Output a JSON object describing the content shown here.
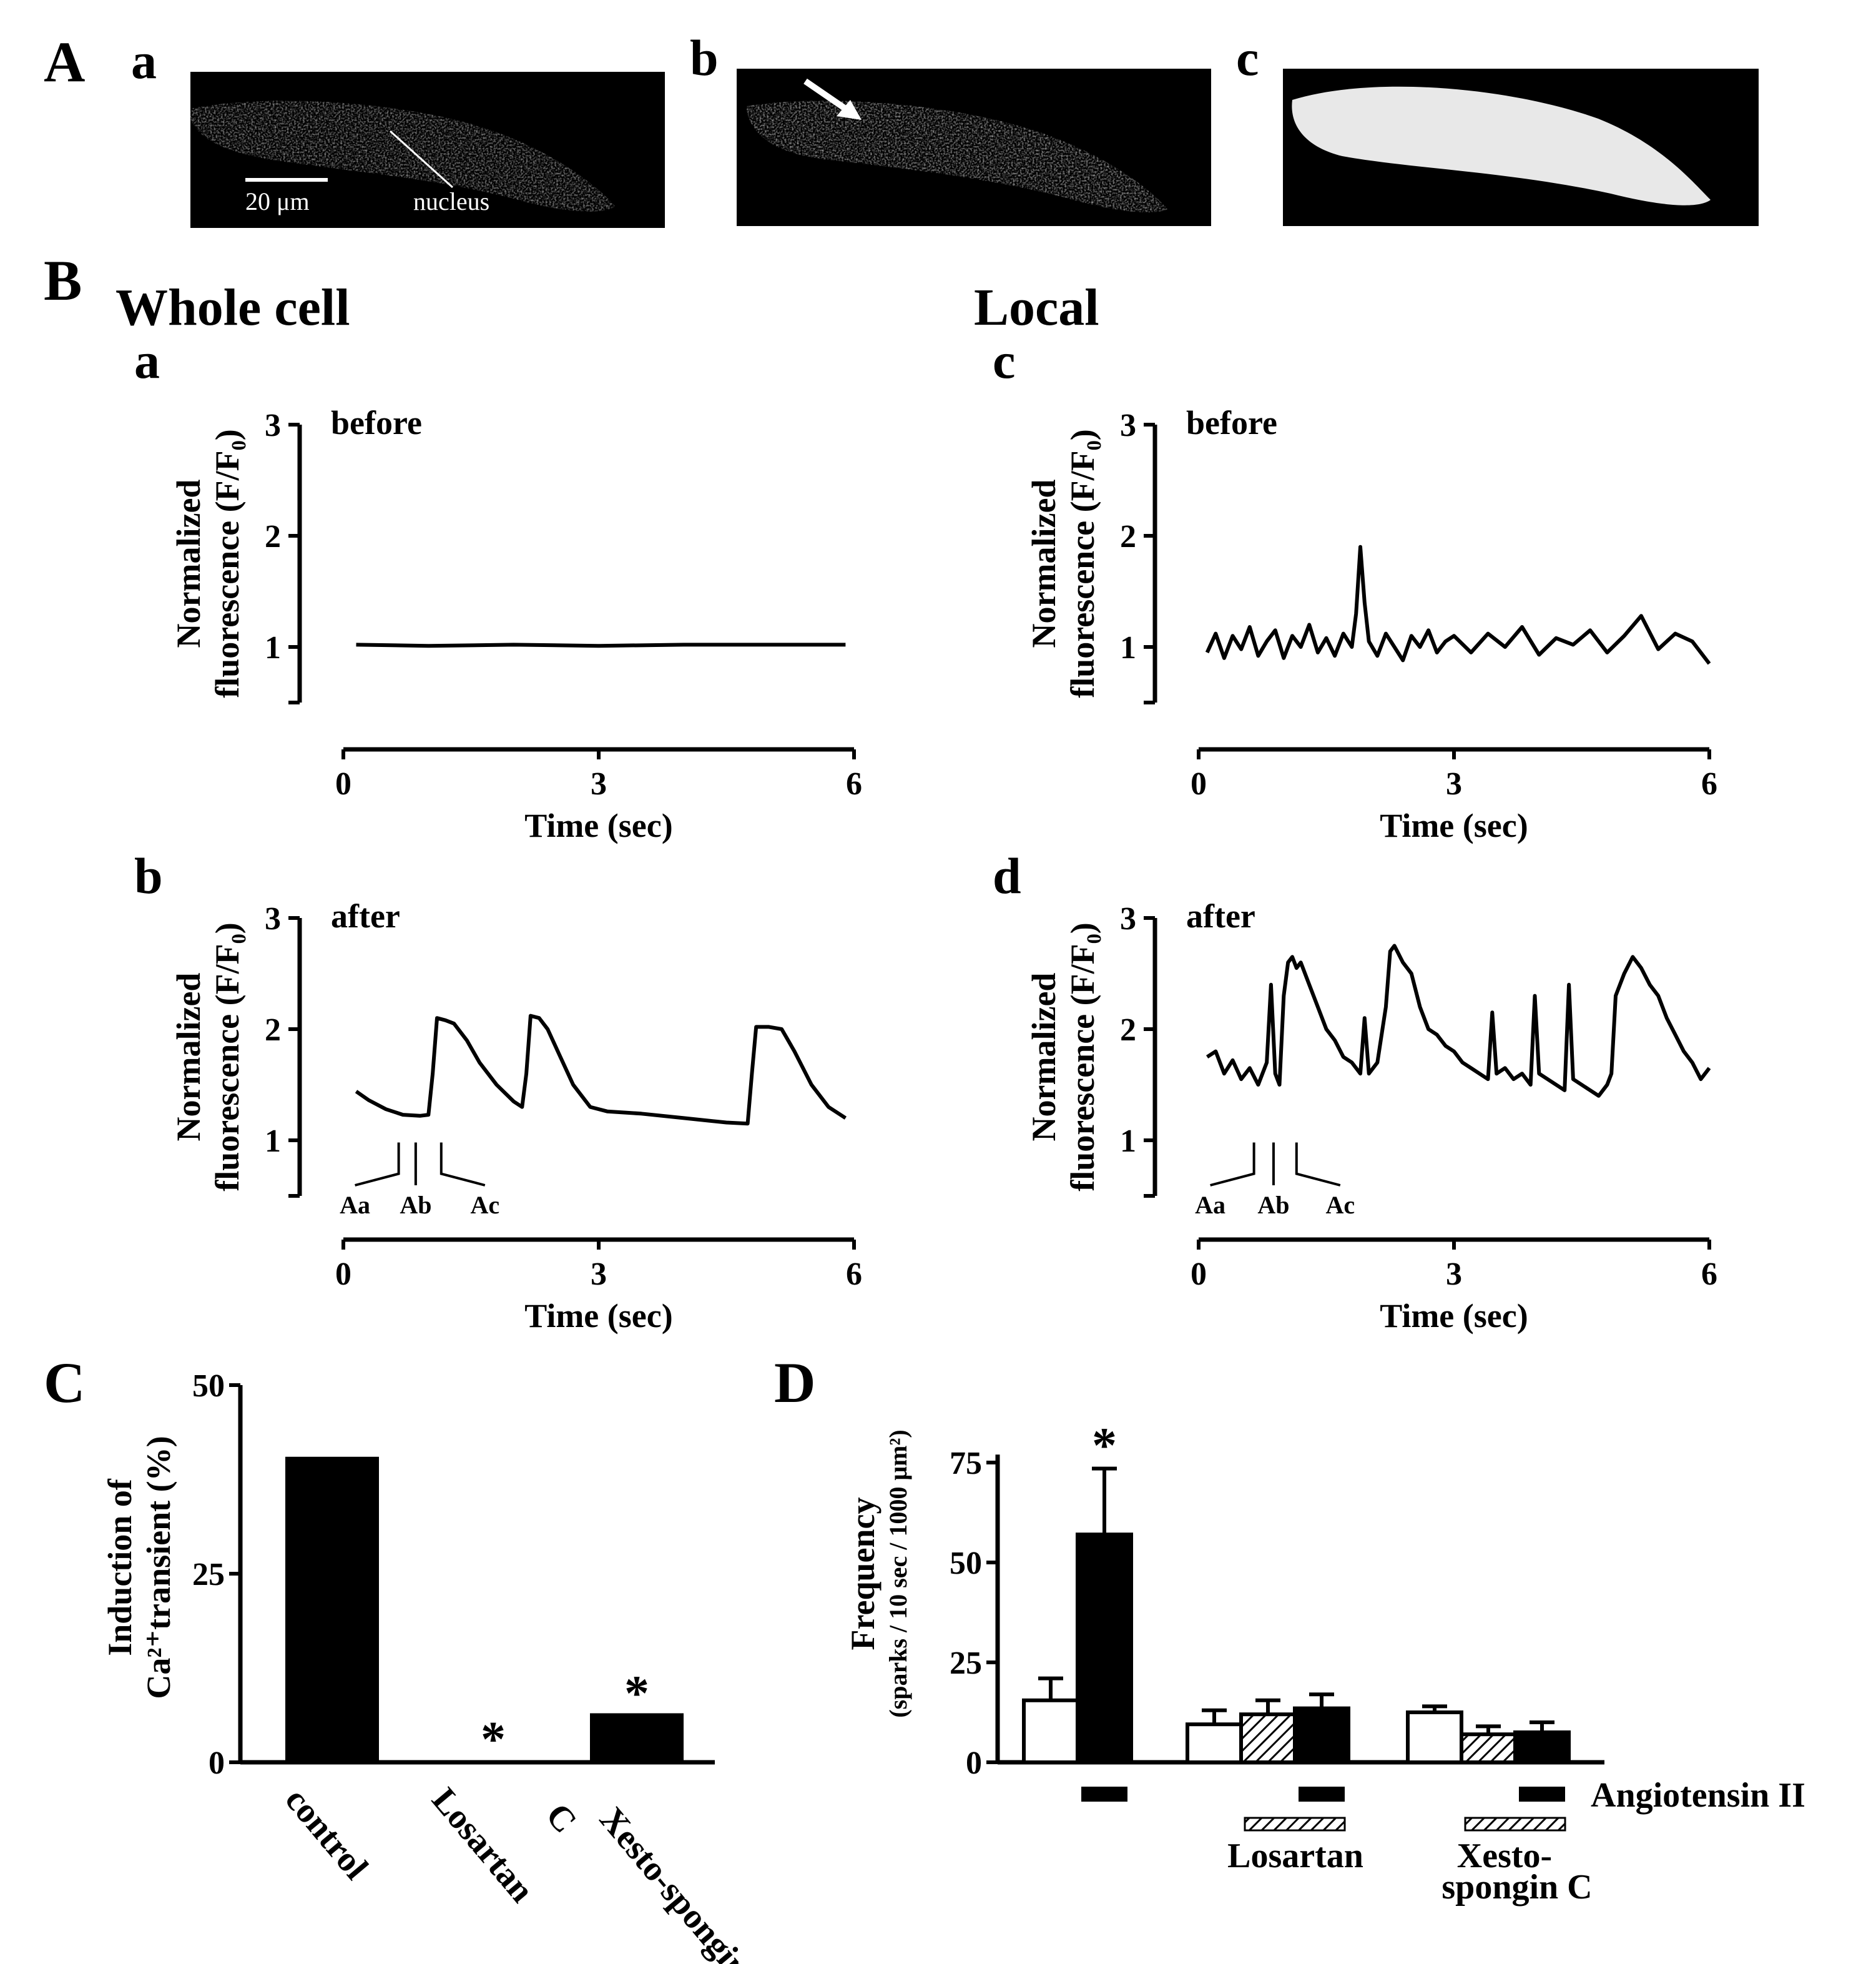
{
  "panel_A": {
    "letter": "A",
    "sublabels": [
      "a",
      "b",
      "c"
    ],
    "scale_bar_label": "20 μm",
    "nucleus_label": "nucleus"
  },
  "panel_B": {
    "letter": "B",
    "whole_cell_title": "Whole cell",
    "local_title": "Local",
    "ylabel_line1": "Normalized",
    "ylabel_line2": "fluorescence (F/F₀)",
    "xlabel": "Time (sec)",
    "before_label": "before",
    "after_label": "after",
    "frame_markers": [
      "Aa",
      "Ab",
      "Ac"
    ]
  },
  "panel_C": {
    "letter": "C",
    "ylabel_line1": "Induction of",
    "ylabel_line2": "Ca²⁺transient (%)",
    "star": "*"
  },
  "panel_D": {
    "letter": "D",
    "ylabel_line1": "Frequency",
    "ylabel_line2": "(sparks / 10 sec / 1000 μm²)",
    "star": "*",
    "treatment_angiotensin": "Angiotensin II",
    "treatment_losartan": "Losartan",
    "treatment_xesto_line1": "Xesto-",
    "treatment_xesto_line2": "spongin C"
  },
  "chart_data": [
    {
      "id": "Ba",
      "type": "line",
      "xlabel": "Time (sec)",
      "ylabel": "Normalized fluorescence (F/F0)",
      "xlim": [
        0,
        6
      ],
      "ylim": [
        0.5,
        3
      ],
      "xticks": [
        0,
        3,
        6
      ],
      "yticks": [
        1,
        2,
        3
      ],
      "annotation": "before",
      "x": [
        0.15,
        1.0,
        2.0,
        3.0,
        4.0,
        5.0,
        5.9
      ],
      "y": [
        1.02,
        1.01,
        1.02,
        1.01,
        1.02,
        1.02,
        1.02
      ]
    },
    {
      "id": "Bb",
      "type": "line",
      "xlabel": "Time (sec)",
      "ylabel": "Normalized fluorescence (F/F0)",
      "xlim": [
        0,
        6
      ],
      "ylim": [
        0.5,
        3
      ],
      "xticks": [
        0,
        3,
        6
      ],
      "yticks": [
        1,
        2,
        3
      ],
      "annotation": "after",
      "markers": [
        {
          "label": "Aa",
          "x": 0.65
        },
        {
          "label": "Ab",
          "x": 0.85
        },
        {
          "label": "Ac",
          "x": 1.15
        }
      ],
      "x": [
        0.15,
        0.3,
        0.5,
        0.7,
        0.9,
        1.0,
        1.05,
        1.1,
        1.2,
        1.3,
        1.45,
        1.6,
        1.8,
        2.0,
        2.1,
        2.15,
        2.2,
        2.3,
        2.4,
        2.55,
        2.7,
        2.9,
        3.1,
        3.5,
        4.0,
        4.5,
        4.75,
        4.8,
        4.85,
        5.0,
        5.15,
        5.3,
        5.5,
        5.7,
        5.9
      ],
      "y": [
        1.44,
        1.36,
        1.28,
        1.23,
        1.22,
        1.23,
        1.6,
        2.1,
        2.08,
        2.05,
        1.9,
        1.7,
        1.5,
        1.35,
        1.3,
        1.6,
        2.12,
        2.1,
        2.0,
        1.75,
        1.5,
        1.3,
        1.26,
        1.24,
        1.2,
        1.16,
        1.15,
        1.6,
        2.02,
        2.02,
        2.0,
        1.8,
        1.5,
        1.3,
        1.2
      ]
    },
    {
      "id": "Bc",
      "type": "line",
      "xlabel": "Time (sec)",
      "ylabel": "Normalized fluorescence (F/F0)",
      "xlim": [
        0,
        6
      ],
      "ylim": [
        0.5,
        3
      ],
      "xticks": [
        0,
        3,
        6
      ],
      "yticks": [
        1,
        2,
        3
      ],
      "annotation": "before",
      "x": [
        0.1,
        0.2,
        0.3,
        0.4,
        0.5,
        0.6,
        0.7,
        0.8,
        0.9,
        1.0,
        1.1,
        1.2,
        1.3,
        1.4,
        1.5,
        1.6,
        1.7,
        1.8,
        1.85,
        1.9,
        1.95,
        2.0,
        2.1,
        2.2,
        2.3,
        2.4,
        2.5,
        2.6,
        2.7,
        2.8,
        2.9,
        3.0,
        3.2,
        3.4,
        3.6,
        3.8,
        4.0,
        4.2,
        4.4,
        4.6,
        4.8,
        5.0,
        5.2,
        5.4,
        5.6,
        5.8,
        6.0
      ],
      "y": [
        0.95,
        1.12,
        0.9,
        1.1,
        0.98,
        1.18,
        0.92,
        1.05,
        1.15,
        0.9,
        1.1,
        1.0,
        1.2,
        0.95,
        1.08,
        0.92,
        1.12,
        1.0,
        1.3,
        1.9,
        1.4,
        1.05,
        0.92,
        1.12,
        1.0,
        0.88,
        1.1,
        1.0,
        1.15,
        0.95,
        1.05,
        1.1,
        0.95,
        1.12,
        1.0,
        1.18,
        0.93,
        1.08,
        1.02,
        1.15,
        0.95,
        1.1,
        1.28,
        0.98,
        1.12,
        1.05,
        0.85
      ]
    },
    {
      "id": "Bd",
      "type": "line",
      "xlabel": "Time (sec)",
      "ylabel": "Normalized fluorescence (F/F0)",
      "xlim": [
        0,
        6
      ],
      "ylim": [
        0.5,
        3
      ],
      "xticks": [
        0,
        3,
        6
      ],
      "yticks": [
        1,
        2,
        3
      ],
      "annotation": "after",
      "markers": [
        {
          "label": "Aa",
          "x": 0.65
        },
        {
          "label": "Ab",
          "x": 0.88
        },
        {
          "label": "Ac",
          "x": 1.15
        }
      ],
      "x": [
        0.1,
        0.2,
        0.3,
        0.4,
        0.5,
        0.6,
        0.7,
        0.8,
        0.85,
        0.9,
        0.95,
        1.0,
        1.05,
        1.1,
        1.15,
        1.2,
        1.3,
        1.4,
        1.5,
        1.6,
        1.7,
        1.8,
        1.9,
        1.95,
        2.0,
        2.1,
        2.2,
        2.25,
        2.3,
        2.4,
        2.5,
        2.6,
        2.7,
        2.8,
        2.9,
        3.0,
        3.1,
        3.2,
        3.3,
        3.4,
        3.45,
        3.5,
        3.6,
        3.7,
        3.8,
        3.9,
        3.95,
        4.0,
        4.1,
        4.2,
        4.3,
        4.35,
        4.4,
        4.5,
        4.6,
        4.7,
        4.8,
        4.85,
        4.9,
        5.0,
        5.1,
        5.2,
        5.3,
        5.4,
        5.5,
        5.6,
        5.7,
        5.8,
        5.9,
        6.0
      ],
      "y": [
        1.75,
        1.8,
        1.6,
        1.72,
        1.55,
        1.65,
        1.5,
        1.7,
        2.4,
        1.6,
        1.5,
        2.3,
        2.6,
        2.65,
        2.55,
        2.6,
        2.4,
        2.2,
        2.0,
        1.9,
        1.75,
        1.7,
        1.6,
        2.1,
        1.6,
        1.7,
        2.2,
        2.7,
        2.75,
        2.6,
        2.5,
        2.2,
        2.0,
        1.95,
        1.85,
        1.8,
        1.7,
        1.65,
        1.6,
        1.55,
        2.15,
        1.6,
        1.65,
        1.55,
        1.6,
        1.5,
        2.3,
        1.6,
        1.55,
        1.5,
        1.45,
        2.4,
        1.55,
        1.5,
        1.45,
        1.4,
        1.5,
        1.6,
        2.3,
        2.5,
        2.65,
        2.55,
        2.4,
        2.3,
        2.1,
        1.95,
        1.8,
        1.7,
        1.55,
        1.65
      ]
    },
    {
      "id": "C",
      "type": "bar",
      "ylabel": "Induction of Ca2+ transient (%)",
      "ylim": [
        0,
        50
      ],
      "yticks": [
        0,
        25,
        50
      ],
      "categories": [
        "control",
        "Losartan",
        "Xesto-spongin C"
      ],
      "values": [
        40.5,
        0,
        6.5
      ],
      "significance": [
        "",
        "*",
        "*"
      ]
    },
    {
      "id": "D",
      "type": "bar",
      "ylabel": "Frequency (sparks / 10 sec / 1000 μm²)",
      "ylim": [
        0,
        80
      ],
      "yticks": [
        0,
        25,
        50,
        75
      ],
      "groups": [
        {
          "bars": [
            {
              "fill": "open",
              "value": 15.5,
              "error": 5.5
            },
            {
              "fill": "solid",
              "value": 57,
              "error": 16.5,
              "significance": "*"
            }
          ],
          "angiotensin_bar_index": 1
        },
        {
          "label": "Losartan",
          "bars": [
            {
              "fill": "open",
              "value": 9.5,
              "error": 3.5
            },
            {
              "fill": "hatched",
              "value": 12,
              "error": 3.5
            },
            {
              "fill": "solid",
              "value": 13.5,
              "error": 3.5
            }
          ],
          "angiotensin_bar_index": 2
        },
        {
          "label": "Xesto-spongin C",
          "bars": [
            {
              "fill": "open",
              "value": 12.5,
              "error": 1.5
            },
            {
              "fill": "hatched",
              "value": 7,
              "error": 2
            },
            {
              "fill": "solid",
              "value": 7.5,
              "error": 2.5
            }
          ],
          "angiotensin_bar_index": 2
        }
      ],
      "treatment_legend": "Angiotensin II"
    }
  ]
}
